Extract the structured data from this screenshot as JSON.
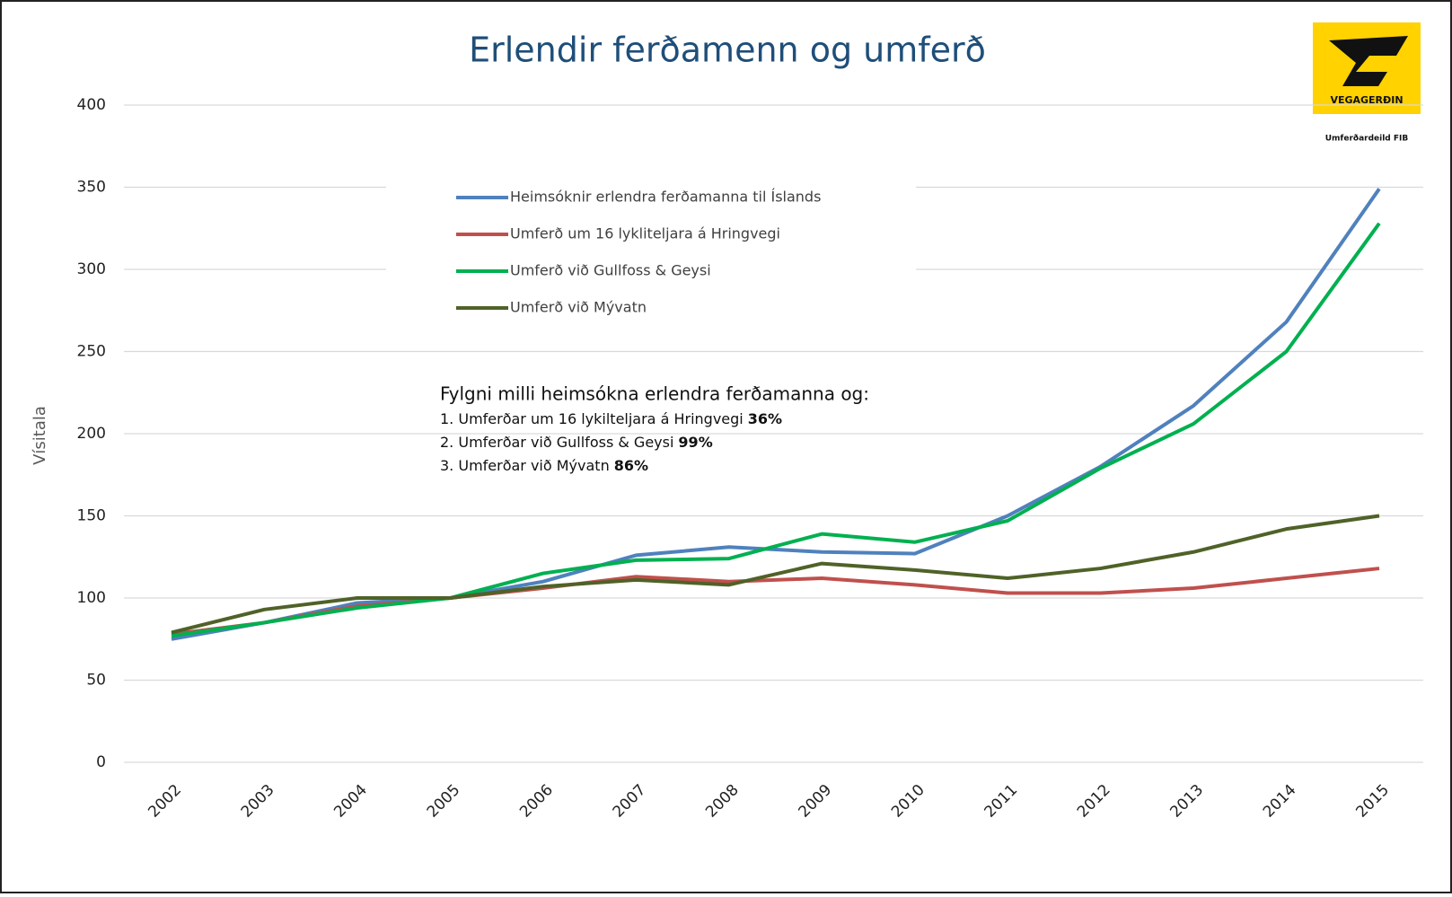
{
  "chart_data": {
    "type": "line",
    "title": "Erlendir ferðamenn og umferð",
    "y_label": "Vísitala",
    "logo": {
      "text": "VEGAGERÐIN",
      "caption": "Umferðardeild FIB"
    },
    "annotation": {
      "heading": "Fylgni milli heimsókna erlendra ferðamanna og:",
      "lines": [
        {
          "text": "1. Umferðar um 16 lykilteljara á Hringvegi",
          "bold": "36%"
        },
        {
          "text": "2. Umferðar við Gullfoss & Geysi",
          "bold": "99%"
        },
        {
          "text": "3. Umferðar við Mývatn",
          "bold": "86%"
        }
      ]
    },
    "categories": [
      "2002",
      "2003",
      "2004",
      "2005",
      "2006",
      "2007",
      "2008",
      "2009",
      "2010",
      "2011",
      "2012",
      "2013",
      "2014",
      "2015"
    ],
    "series": [
      {
        "name": "Heimsóknir erlendra ferðamanna til Íslands",
        "color": "#4f81bd",
        "values": [
          75,
          85,
          97,
          100,
          110,
          126,
          131,
          128,
          127,
          150,
          180,
          217,
          268,
          349
        ]
      },
      {
        "name": "Umferð um 16 lykliteljara á Hringvegi",
        "color": "#c0504d",
        "values": [
          78,
          85,
          95,
          100,
          106,
          113,
          110,
          112,
          108,
          103,
          103,
          106,
          112,
          118
        ]
      },
      {
        "name": "Umferð við Gullfoss & Geysi",
        "color": "#00b050",
        "values": [
          77,
          85,
          94,
          100,
          115,
          123,
          124,
          139,
          134,
          147,
          179,
          206,
          250,
          328
        ]
      },
      {
        "name": "Umferð við Mývatn",
        "color": "#4f6228",
        "values": [
          79,
          93,
          100,
          100,
          107,
          111,
          108,
          121,
          117,
          112,
          118,
          128,
          142,
          150
        ]
      }
    ],
    "ylim": [
      0,
      400
    ],
    "yticks": [
      0,
      50,
      100,
      150,
      200,
      250,
      300,
      350,
      400
    ],
    "grid": true
  }
}
